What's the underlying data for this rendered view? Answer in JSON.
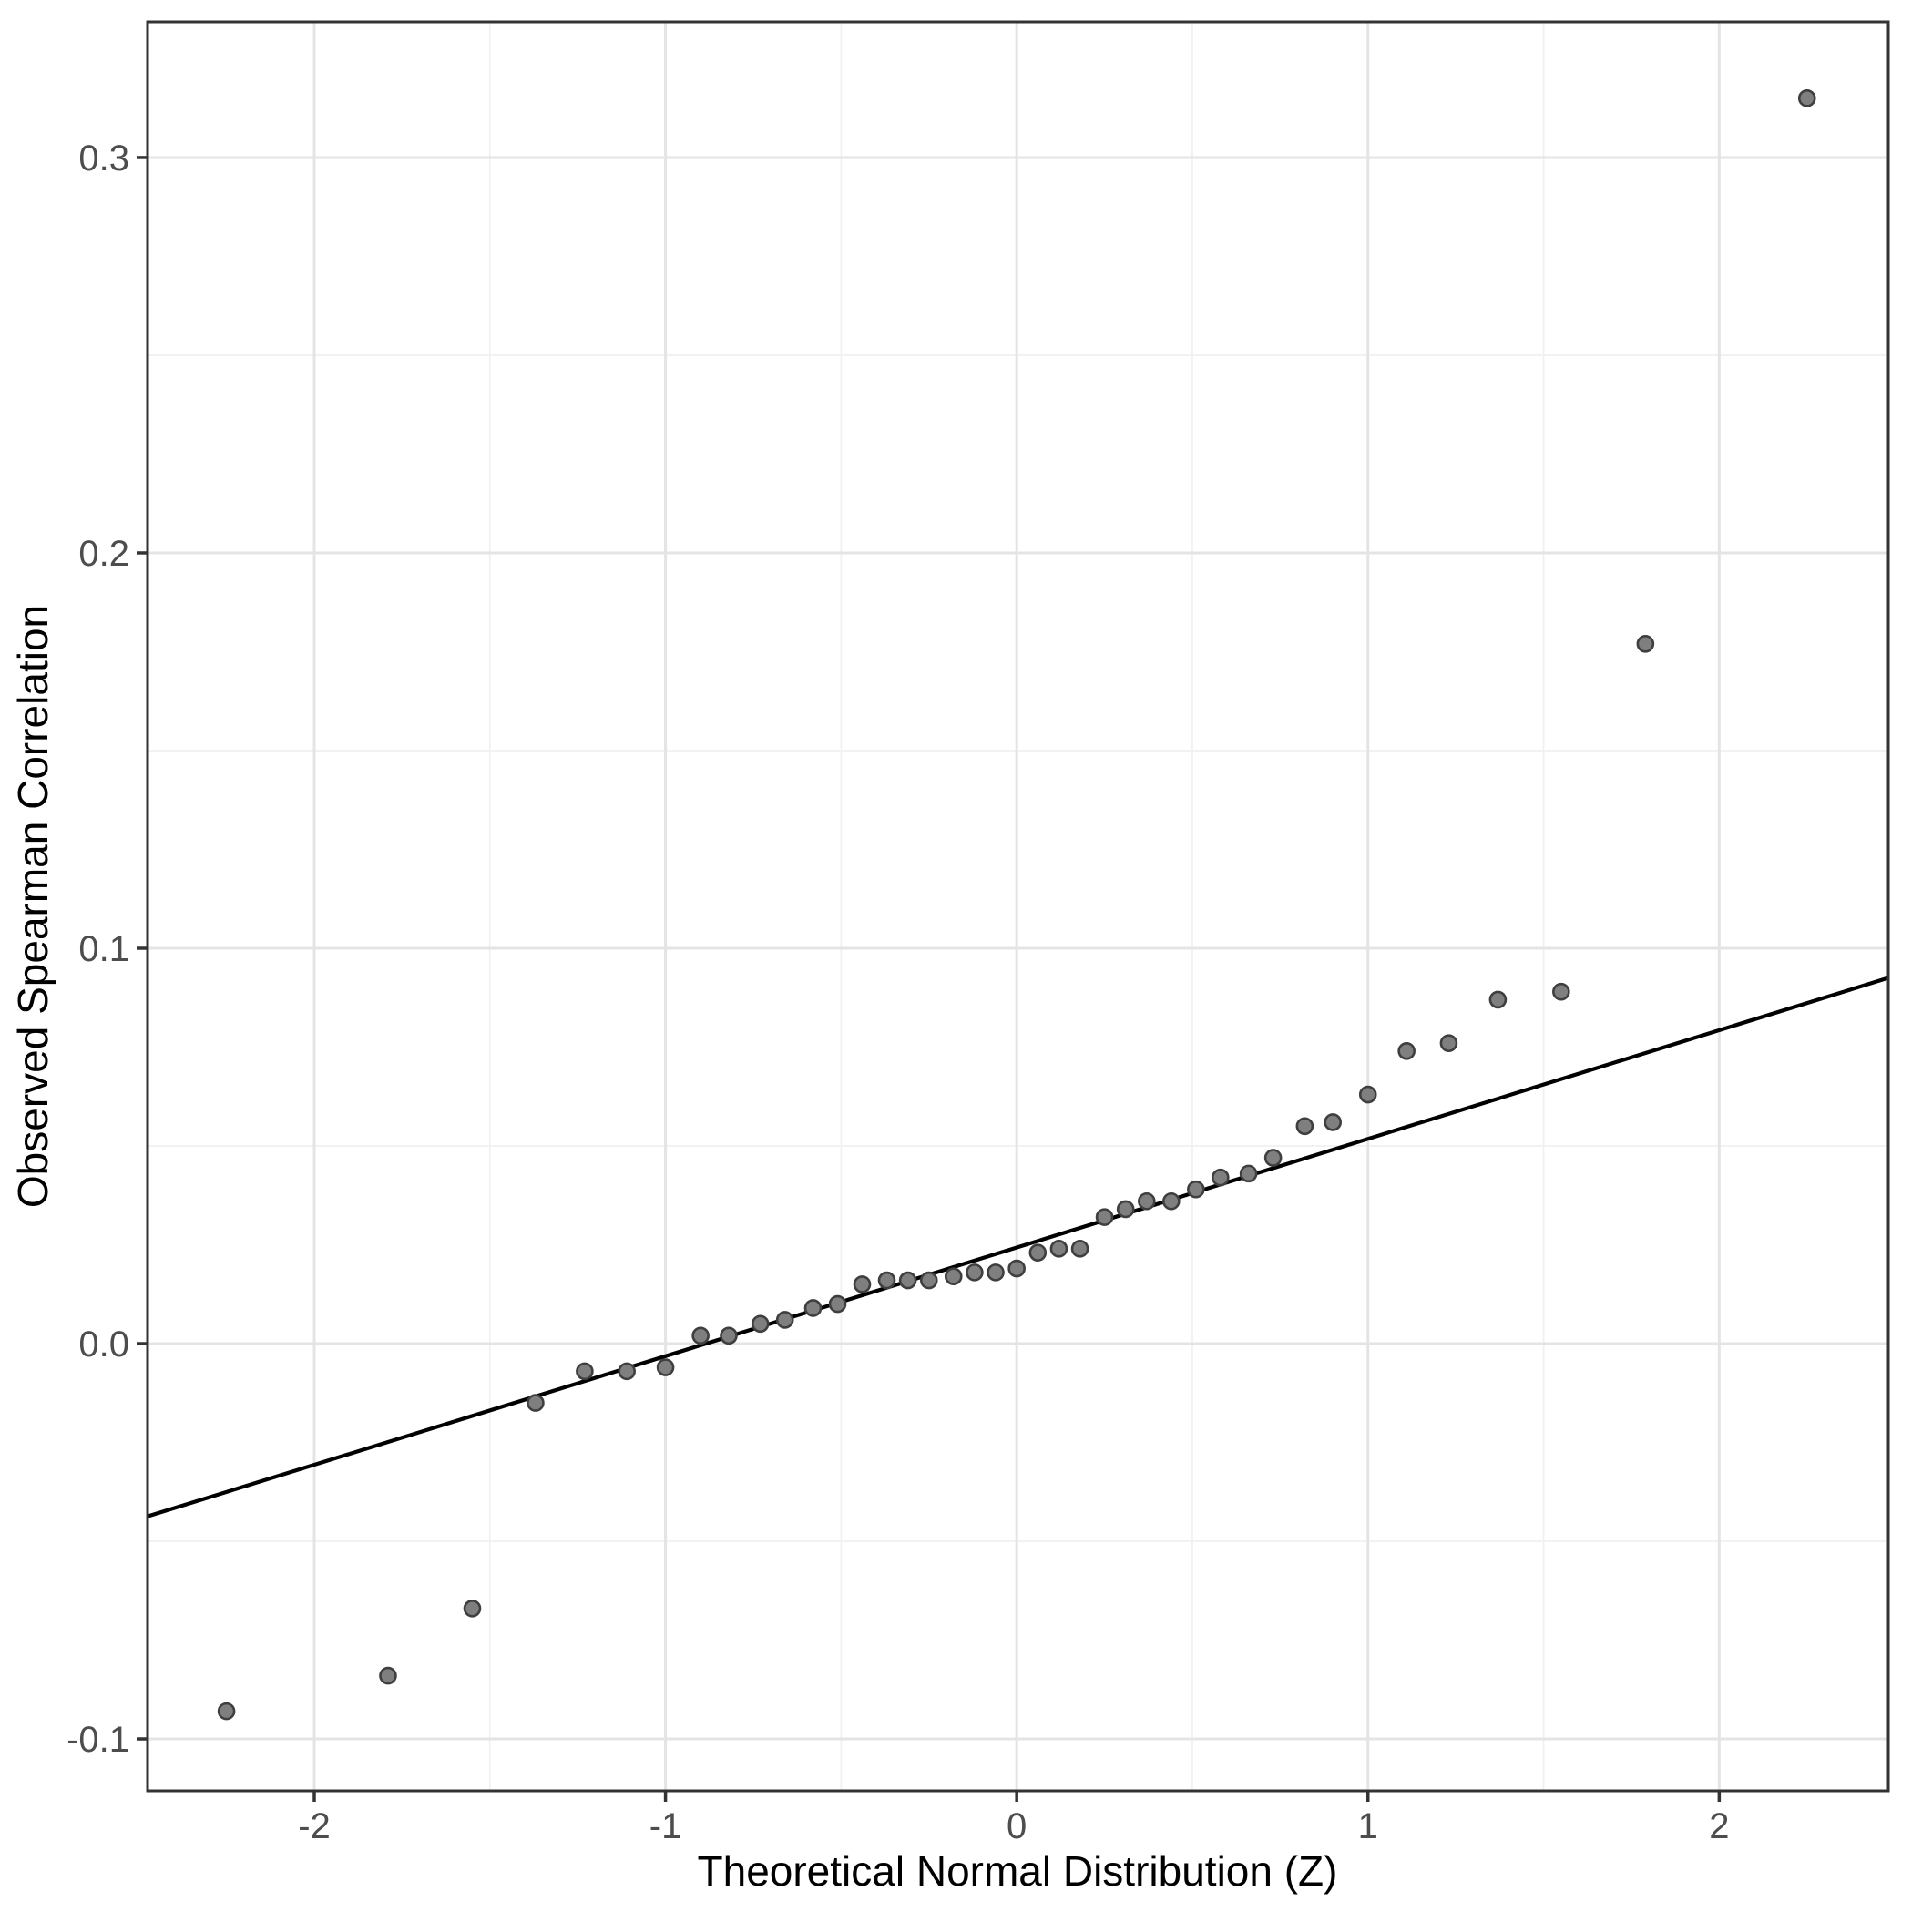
{
  "figure": {
    "kind": "qq-plot",
    "background_color": "#FFFFFF"
  },
  "chart_data": {
    "type": "scatter",
    "title": "",
    "xlabel": "Theoretical Normal Distribution (Z)",
    "ylabel": "Observed Spearman Correlation",
    "xlim": [
      -2.4746,
      2.4815
    ],
    "ylim": [
      -0.11313,
      0.33432
    ],
    "x_major_ticks": [
      -2,
      -1,
      0,
      1,
      2
    ],
    "x_tick_labels": [
      "-2",
      "-1",
      "0",
      "1",
      "2"
    ],
    "x_minor_ticks": [
      -1.5,
      -0.5,
      0.5,
      1.5
    ],
    "y_major_ticks": [
      -0.1,
      0.0,
      0.1,
      0.2,
      0.3
    ],
    "y_tick_labels": [
      "-0.1",
      "0.0",
      "0.1",
      "0.2",
      "0.3"
    ],
    "y_minor_ticks": [
      -0.05,
      0.05,
      0.15,
      0.25
    ],
    "grid": "major+minor",
    "legend": "none",
    "n_points": 41,
    "series": [
      {
        "name": "sample-quantiles",
        "type": "points",
        "points": [
          [
            -2.25,
            -0.093
          ],
          [
            -1.79,
            -0.084
          ],
          [
            -1.55,
            -0.067
          ],
          [
            -1.37,
            -0.015
          ],
          [
            -1.23,
            -0.007
          ],
          [
            -1.11,
            -0.007
          ],
          [
            -1.0,
            -0.006
          ],
          [
            -0.9,
            0.002
          ],
          [
            -0.82,
            0.002
          ],
          [
            -0.73,
            0.005
          ],
          [
            -0.66,
            0.006
          ],
          [
            -0.58,
            0.009
          ],
          [
            -0.51,
            0.01
          ],
          [
            -0.44,
            0.015
          ],
          [
            -0.37,
            0.016
          ],
          [
            -0.31,
            0.016
          ],
          [
            -0.25,
            0.016
          ],
          [
            -0.18,
            0.017
          ],
          [
            -0.12,
            0.018
          ],
          [
            -0.06,
            0.018
          ],
          [
            0.0,
            0.019
          ],
          [
            0.06,
            0.023
          ],
          [
            0.12,
            0.024
          ],
          [
            0.18,
            0.024
          ],
          [
            0.25,
            0.032
          ],
          [
            0.31,
            0.034
          ],
          [
            0.37,
            0.036
          ],
          [
            0.44,
            0.036
          ],
          [
            0.51,
            0.039
          ],
          [
            0.58,
            0.042
          ],
          [
            0.66,
            0.043
          ],
          [
            0.73,
            0.047
          ],
          [
            0.82,
            0.055
          ],
          [
            0.9,
            0.056
          ],
          [
            1.0,
            0.063
          ],
          [
            1.11,
            0.074
          ],
          [
            1.23,
            0.076
          ],
          [
            1.37,
            0.087
          ],
          [
            1.55,
            0.089
          ],
          [
            1.79,
            0.177
          ],
          [
            2.25,
            0.315
          ]
        ]
      },
      {
        "name": "qq-reference-line",
        "type": "line",
        "x1": -2.4746,
        "y1": -0.0437,
        "x2": 2.4815,
        "y2": 0.0925,
        "slope": 0.0275,
        "intercept": 0.0243
      }
    ],
    "colors": {
      "point_fill": "#7F7F7F",
      "point_stroke": "#3F3F3F",
      "line_color": "#000000",
      "grid_major_color": "#E4E4E4",
      "grid_minor_color": "#F1F1F1",
      "panel_border_color": "#333333",
      "tick_mark_color": "#333333",
      "tick_label_color": "#4D4D4D",
      "axis_title_color": "#000000"
    }
  }
}
